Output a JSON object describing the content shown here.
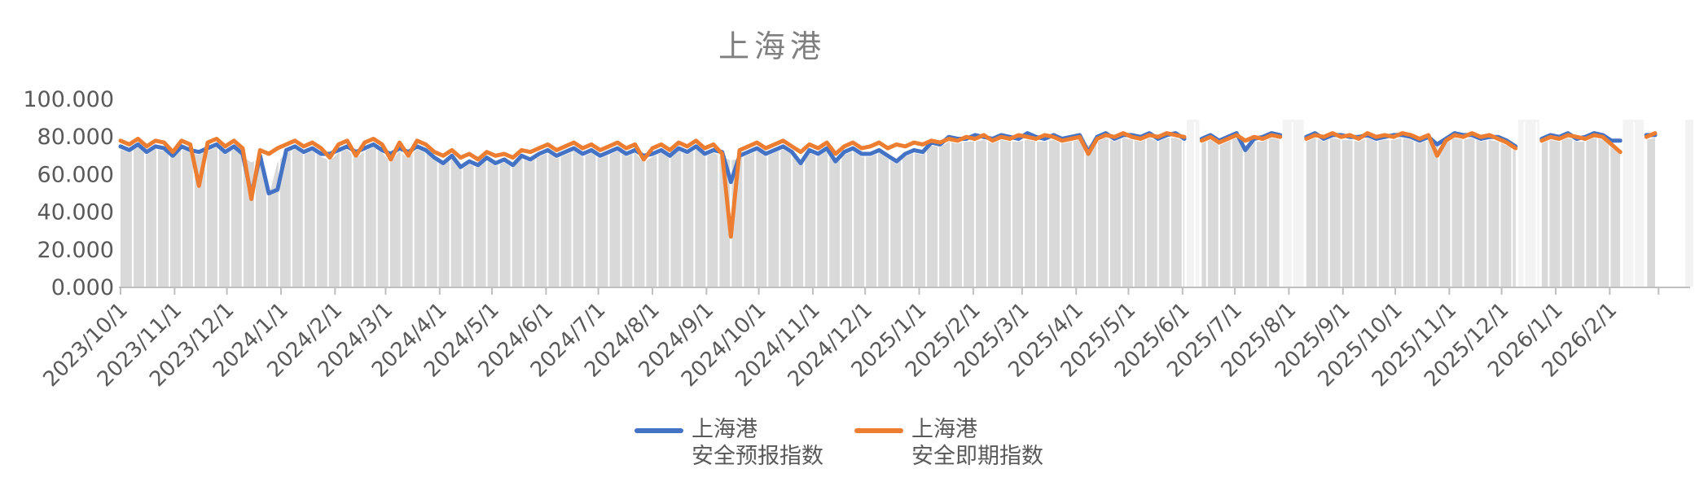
{
  "title": "上海港",
  "legend": {
    "entries": [
      {
        "line1": "上海港",
        "line2": "安全预报指数",
        "color": "#4472C4"
      },
      {
        "line1": "上海港",
        "line2": "安全即期指数",
        "color": "#ED7D31"
      }
    ]
  },
  "chart_data": {
    "type": "line",
    "title": "上海港",
    "x_start_date": "2023/10/1",
    "days_per_point": 5,
    "ylim": [
      0,
      100
    ],
    "grid": "weekly-vertical-white",
    "legend_position": "bottom",
    "y_tick_labels": [
      "100.000",
      "80.000",
      "60.000",
      "40.000",
      "20.000",
      "0.000"
    ],
    "y_tick_values": [
      100,
      80,
      60,
      40,
      20,
      0
    ],
    "x_ticks": [
      {
        "label": "2023/10/1",
        "day": 0
      },
      {
        "label": "2023/11/1",
        "day": 31
      },
      {
        "label": "2023/12/1",
        "day": 61
      },
      {
        "label": "2024/1/1",
        "day": 92
      },
      {
        "label": "2024/2/1",
        "day": 123
      },
      {
        "label": "2024/3/1",
        "day": 152
      },
      {
        "label": "2024/4/1",
        "day": 183
      },
      {
        "label": "2024/5/1",
        "day": 213
      },
      {
        "label": "2024/6/1",
        "day": 244
      },
      {
        "label": "2024/7/1",
        "day": 274
      },
      {
        "label": "2024/8/1",
        "day": 305
      },
      {
        "label": "2024/9/1",
        "day": 336
      },
      {
        "label": "2024/10/1",
        "day": 366
      },
      {
        "label": "2024/11/1",
        "day": 397
      },
      {
        "label": "2024/12/1",
        "day": 427
      },
      {
        "label": "2025/1/1",
        "day": 458
      },
      {
        "label": "2025/2/1",
        "day": 489
      },
      {
        "label": "2025/3/1",
        "day": 517
      },
      {
        "label": "2025/4/1",
        "day": 548
      },
      {
        "label": "2025/5/1",
        "day": 578
      },
      {
        "label": "2025/6/1",
        "day": 609
      },
      {
        "label": "2025/7/1",
        "day": 639
      },
      {
        "label": "2025/8/1",
        "day": 670
      },
      {
        "label": "2025/9/1",
        "day": 701
      },
      {
        "label": "2025/10/1",
        "day": 731
      },
      {
        "label": "2025/11/1",
        "day": 762
      },
      {
        "label": "2025/12/1",
        "day": 792
      },
      {
        "label": "2026/1/1",
        "day": 823
      },
      {
        "label": "2026/2/1",
        "day": 854
      },
      {
        "label": "",
        "day": 882
      }
    ],
    "series": [
      {
        "name": "上海港 安全预报指数",
        "color": "#4472C4",
        "values": [
          75,
          73,
          76,
          72,
          75,
          74,
          70,
          75,
          73,
          72,
          74,
          76,
          72,
          75,
          71,
          49,
          70,
          50,
          52,
          73,
          75,
          72,
          74,
          71,
          71,
          73,
          75,
          72,
          74,
          76,
          73,
          71,
          74,
          72,
          75,
          73,
          69,
          66,
          70,
          64,
          67,
          65,
          69,
          66,
          68,
          65,
          70,
          68,
          71,
          73,
          70,
          72,
          74,
          71,
          73,
          70,
          72,
          74,
          71,
          73,
          70,
          71,
          73,
          70,
          74,
          72,
          75,
          71,
          73,
          72,
          56,
          70,
          72,
          74,
          71,
          73,
          75,
          72,
          66,
          73,
          71,
          74,
          67,
          72,
          74,
          71,
          71,
          73,
          70,
          67,
          71,
          73,
          72,
          77,
          76,
          80,
          79,
          79,
          81,
          80,
          79,
          81,
          80,
          79,
          82,
          80,
          79,
          81,
          79,
          80,
          81,
          72,
          80,
          82,
          79,
          81,
          81,
          80,
          82,
          79,
          81,
          82,
          79,
          null,
          79,
          81,
          78,
          80,
          82,
          73,
          79,
          80,
          82,
          81,
          null,
          null,
          80,
          82,
          79,
          81,
          81,
          80,
          80,
          81,
          79,
          80,
          81,
          81,
          80,
          78,
          80,
          76,
          79,
          82,
          81,
          81,
          79,
          80,
          80,
          78,
          75,
          null,
          null,
          79,
          81,
          80,
          82,
          79,
          80,
          82,
          81,
          78,
          78,
          null,
          null,
          81,
          81
        ]
      },
      {
        "name": "上海港 安全即期指数",
        "color": "#ED7D31",
        "values": [
          78,
          76,
          79,
          75,
          78,
          77,
          72,
          78,
          76,
          54,
          77,
          79,
          75,
          78,
          74,
          47,
          73,
          71,
          74,
          76,
          78,
          75,
          77,
          74,
          69,
          76,
          78,
          70,
          77,
          79,
          76,
          68,
          77,
          70,
          78,
          76,
          72,
          70,
          73,
          69,
          71,
          68,
          72,
          70,
          71,
          69,
          73,
          72,
          74,
          76,
          73,
          75,
          77,
          74,
          76,
          73,
          75,
          77,
          74,
          76,
          68,
          74,
          76,
          73,
          77,
          75,
          78,
          74,
          76,
          71,
          27,
          73,
          75,
          77,
          74,
          76,
          78,
          75,
          72,
          76,
          74,
          77,
          71,
          75,
          77,
          74,
          75,
          77,
          74,
          76,
          75,
          77,
          76,
          78,
          77,
          79,
          78,
          80,
          79,
          81,
          78,
          80,
          79,
          81,
          80,
          79,
          81,
          80,
          78,
          79,
          80,
          71,
          79,
          81,
          80,
          82,
          80,
          79,
          81,
          80,
          82,
          81,
          80,
          null,
          78,
          80,
          77,
          79,
          81,
          78,
          80,
          79,
          81,
          80,
          null,
          null,
          79,
          81,
          80,
          82,
          80,
          81,
          79,
          82,
          80,
          81,
          80,
          82,
          81,
          79,
          81,
          70,
          78,
          81,
          80,
          82,
          80,
          81,
          79,
          77,
          74,
          null,
          null,
          78,
          80,
          79,
          81,
          80,
          79,
          81,
          80,
          76,
          72,
          null,
          null,
          80,
          82
        ]
      }
    ],
    "style": {
      "area_fill": "#D9D9D9",
      "gap_band_fill": "#F3F3F3",
      "gridline_color": "#FFFFFF",
      "axis_color": "#BFBFBF",
      "tick_label_color": "#595959",
      "title_color": "#7F7F7F"
    }
  }
}
